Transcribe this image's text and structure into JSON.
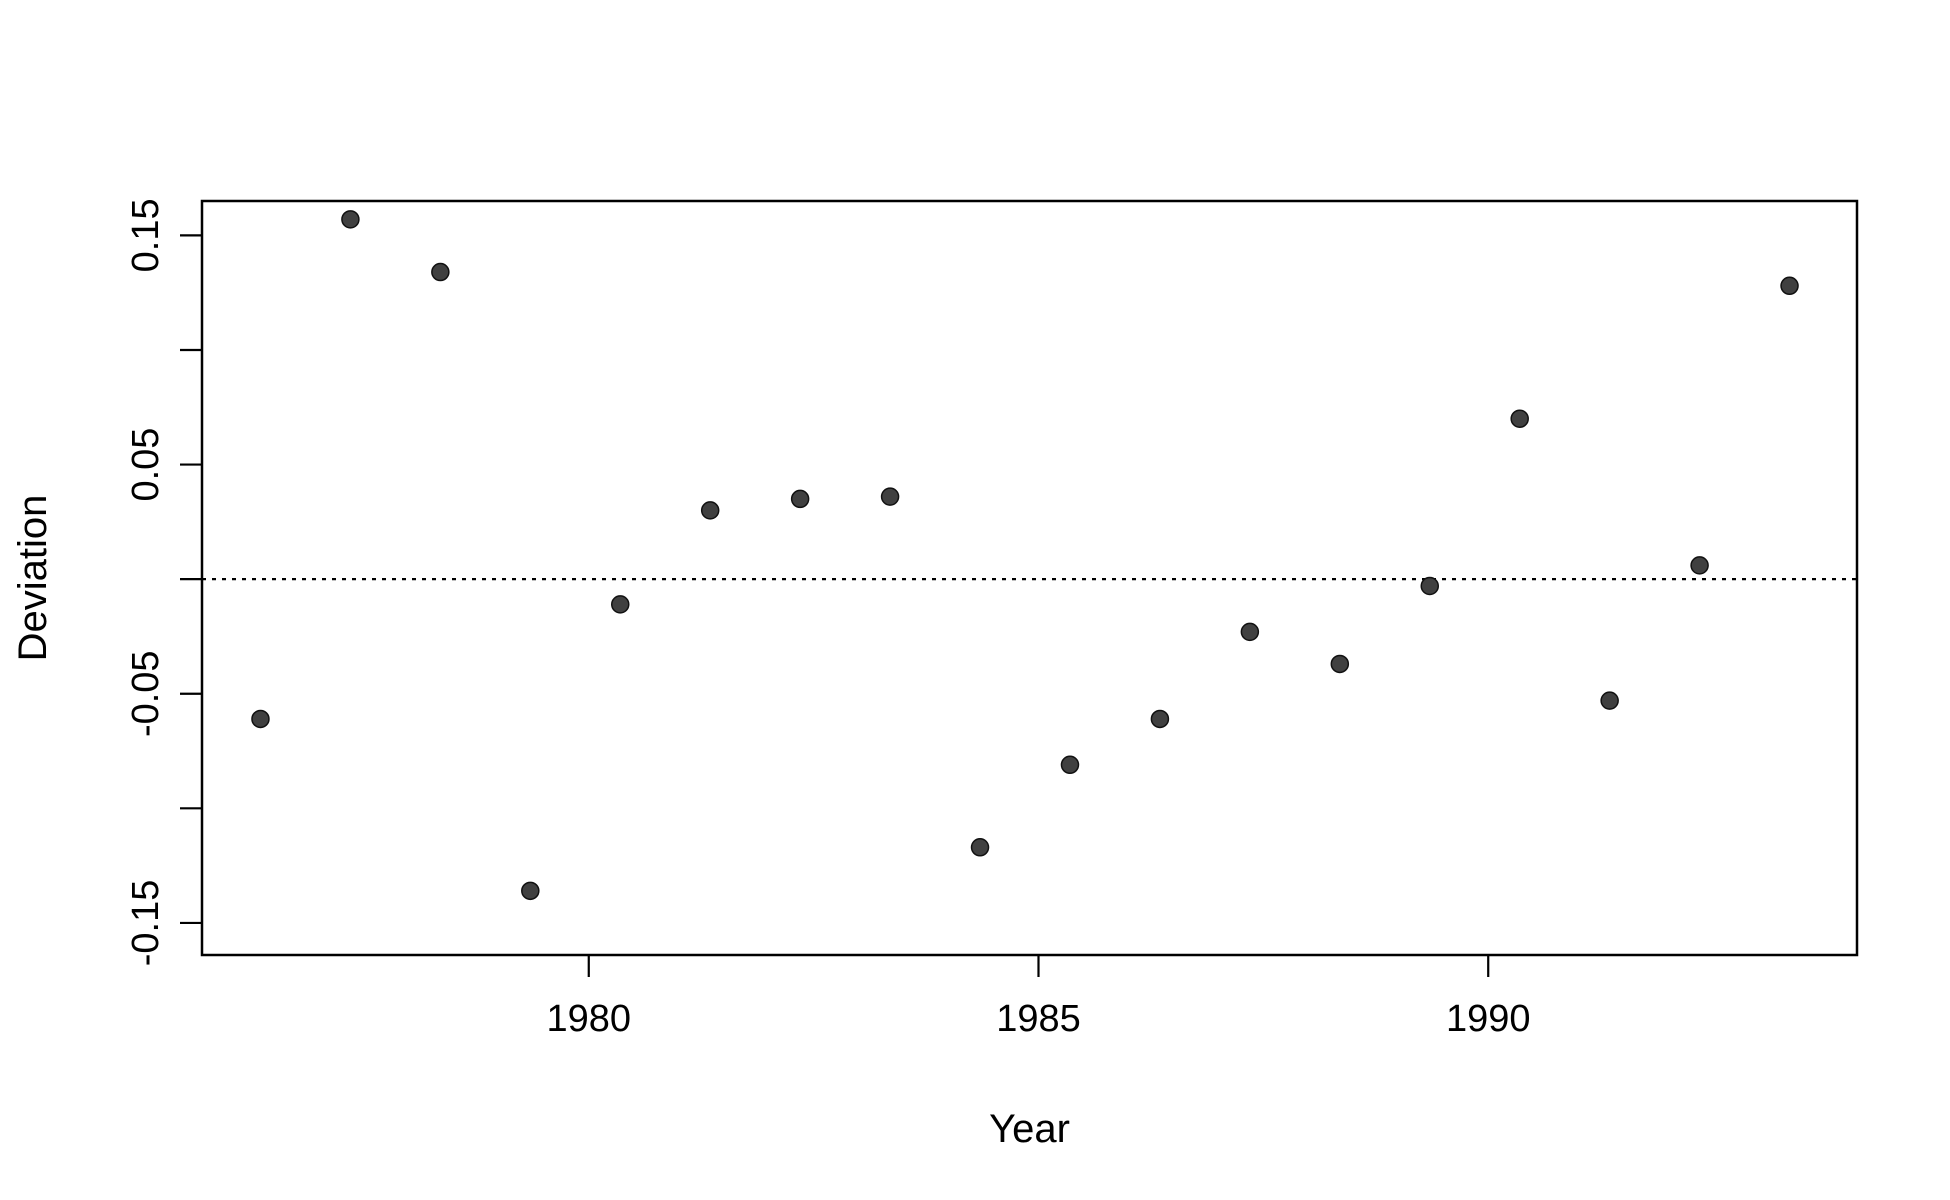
{
  "chart_data": {
    "type": "scatter",
    "xlabel": "Year",
    "ylabel": "Deviation",
    "xlim": [
      1975.7,
      1994.1
    ],
    "ylim": [
      -0.164,
      0.165
    ],
    "x_ticks": [
      1980,
      1985,
      1990
    ],
    "x_tick_labels": [
      "1980",
      "1985",
      "1990"
    ],
    "y_ticks": [
      -0.15,
      -0.1,
      -0.05,
      0.0,
      0.05,
      0.1,
      0.15
    ],
    "y_tick_labels": [
      "-0.15",
      "",
      "-0.05",
      "",
      "0.05",
      "",
      "0.15"
    ],
    "reference_line": {
      "y": 0,
      "style": "dotted"
    },
    "grid": false,
    "point_color": "#404040",
    "points": [
      {
        "x": 1976.35,
        "y": -0.061
      },
      {
        "x": 1977.35,
        "y": 0.157
      },
      {
        "x": 1978.35,
        "y": 0.134
      },
      {
        "x": 1979.35,
        "y": -0.136
      },
      {
        "x": 1980.35,
        "y": -0.011
      },
      {
        "x": 1981.35,
        "y": 0.03
      },
      {
        "x": 1982.35,
        "y": 0.035
      },
      {
        "x": 1983.35,
        "y": 0.036
      },
      {
        "x": 1984.35,
        "y": -0.117
      },
      {
        "x": 1985.35,
        "y": -0.081
      },
      {
        "x": 1986.35,
        "y": -0.061
      },
      {
        "x": 1987.35,
        "y": -0.023
      },
      {
        "x": 1988.35,
        "y": -0.037
      },
      {
        "x": 1989.35,
        "y": -0.003
      },
      {
        "x": 1990.35,
        "y": 0.07
      },
      {
        "x": 1991.35,
        "y": -0.053
      },
      {
        "x": 1992.35,
        "y": 0.006
      },
      {
        "x": 1993.35,
        "y": 0.128
      }
    ]
  }
}
